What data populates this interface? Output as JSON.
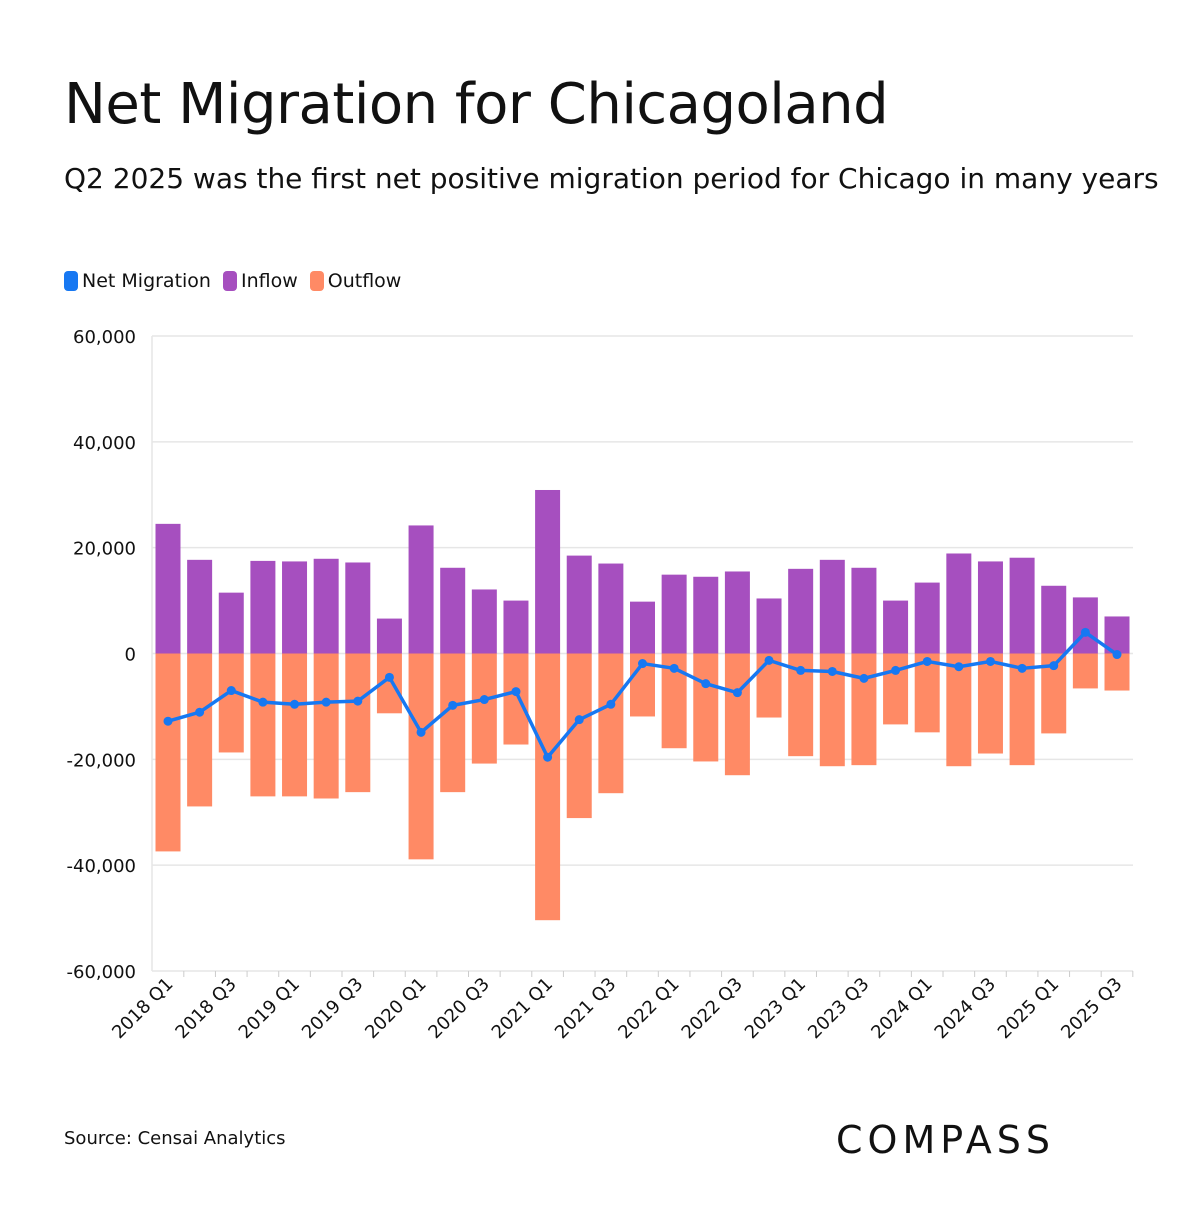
{
  "title": "Net Migration for Chicagoland",
  "subtitle": "Q2 2025 was the first net positive migration period for Chicago in many years",
  "source": "Source: Censai Analytics",
  "logo": "COMPASS",
  "colors": {
    "net": "#1778f2",
    "inflow": "#a64fbf",
    "outflow": "#ff8a65",
    "grid": "#e6e6e6"
  },
  "chart_data": {
    "type": "bar",
    "stacked": true,
    "grid": true,
    "legend_position": "top-left",
    "ylim": [
      -60000,
      60000
    ],
    "yticks": [
      60000,
      40000,
      20000,
      0,
      -20000,
      -40000,
      -60000
    ],
    "ytick_labels": [
      "60,000",
      "40,000",
      "20,000",
      "0",
      "-20,000",
      "-40,000",
      "-60,000"
    ],
    "categories": [
      "2018 Q1",
      "2018 Q2",
      "2018 Q3",
      "2018 Q4",
      "2019 Q1",
      "2019 Q2",
      "2019 Q3",
      "2019 Q4",
      "2020 Q1",
      "2020 Q2",
      "2020 Q3",
      "2020 Q4",
      "2021 Q1",
      "2021 Q2",
      "2021 Q3",
      "2021 Q4",
      "2022 Q1",
      "2022 Q2",
      "2022 Q3",
      "2022 Q4",
      "2023 Q1",
      "2023 Q2",
      "2023 Q3",
      "2023 Q4",
      "2024 Q1",
      "2024 Q2",
      "2024 Q3",
      "2024 Q4",
      "2025 Q1",
      "2025 Q2",
      "2025 Q3"
    ],
    "xtick_labels": [
      "2018 Q1",
      "2018 Q3",
      "2019 Q1",
      "2019 Q3",
      "2020 Q1",
      "2020 Q3",
      "2021 Q1",
      "2021 Q3",
      "2022 Q1",
      "2022 Q3",
      "2023 Q1",
      "2023 Q3",
      "2024 Q1",
      "2024 Q3",
      "2025 Q1",
      "2025 Q3"
    ],
    "series": [
      {
        "name": "Net Migration",
        "type": "line",
        "values": [
          -12800,
          -11100,
          -7000,
          -9200,
          -9600,
          -9200,
          -9000,
          -4500,
          -14900,
          -9800,
          -8700,
          -7200,
          -19600,
          -12500,
          -9600,
          -1900,
          -2800,
          -5700,
          -7400,
          -1300,
          -3200,
          -3400,
          -4700,
          -3200,
          -1500,
          -2500,
          -1500,
          -2800,
          -2300,
          4000,
          -200
        ]
      },
      {
        "name": "Inflow",
        "type": "bar",
        "values": [
          24500,
          17700,
          11500,
          17500,
          17400,
          17900,
          17200,
          6600,
          24200,
          16200,
          12100,
          10000,
          30900,
          18500,
          17000,
          9800,
          14900,
          14500,
          15500,
          10400,
          16000,
          17700,
          16200,
          10000,
          13400,
          18900,
          17400,
          18100,
          12800,
          10600,
          7000
        ]
      },
      {
        "name": "Outflow",
        "type": "bar",
        "values": [
          -37400,
          -28900,
          -18700,
          -27000,
          -27000,
          -27400,
          -26200,
          -11300,
          -38900,
          -26200,
          -20800,
          -17200,
          -50400,
          -31100,
          -26400,
          -11900,
          -17900,
          -20400,
          -23000,
          -12100,
          -19400,
          -21300,
          -21100,
          -13400,
          -14900,
          -21300,
          -18900,
          -21100,
          -15100,
          -6600,
          -7000
        ]
      }
    ]
  }
}
